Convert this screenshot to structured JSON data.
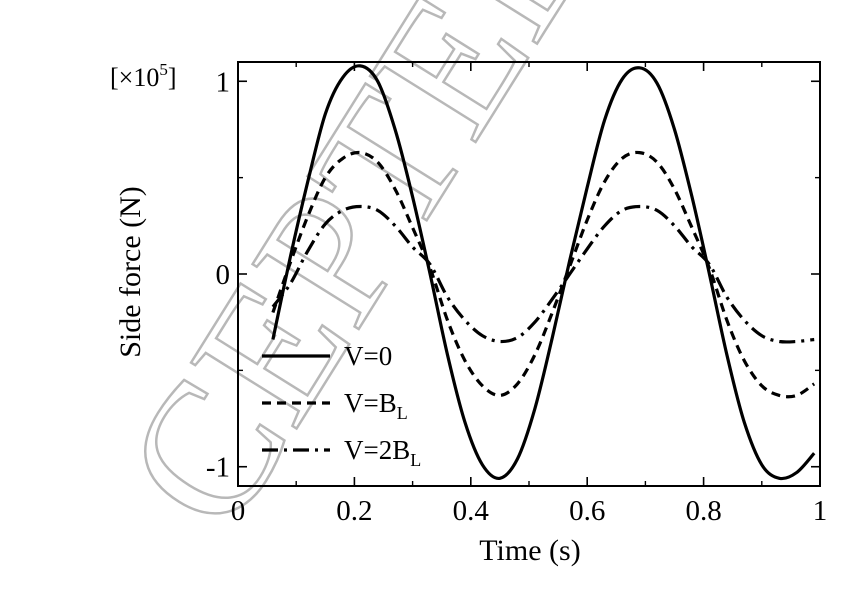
{
  "watermark": {
    "text": "CEPTED",
    "color": "#b5b5b5"
  },
  "scale_label": {
    "prefix": "[×10",
    "exponent": "5",
    "suffix": "]"
  },
  "chart_data": {
    "type": "line",
    "title": "",
    "xlabel": "Time (s)",
    "ylabel": "Side force (N)",
    "xlim": [
      0,
      1
    ],
    "ylim": [
      -1.1,
      1.1
    ],
    "y_multiplier": "×10^5",
    "x_ticks": [
      0,
      0.2,
      0.4,
      0.6,
      0.8,
      1
    ],
    "x_tick_labels": [
      "0",
      "0.2",
      "0.4",
      "0.6",
      "0.8",
      "1"
    ],
    "y_ticks": [
      -1,
      0,
      1
    ],
    "y_tick_labels": [
      "-1",
      "0",
      "1"
    ],
    "grid": false,
    "legend_position": "bottom-left",
    "series": [
      {
        "name": "V=0",
        "name_base": "V=0",
        "name_sub": "",
        "style": "solid",
        "color": "#000000",
        "x": [
          0.06,
          0.09,
          0.12,
          0.15,
          0.18,
          0.21,
          0.24,
          0.27,
          0.3,
          0.33,
          0.36,
          0.39,
          0.42,
          0.45,
          0.48,
          0.51,
          0.54,
          0.57,
          0.6,
          0.63,
          0.66,
          0.69,
          0.72,
          0.75,
          0.78,
          0.81,
          0.84,
          0.87,
          0.9,
          0.93,
          0.96,
          0.99
        ],
        "y": [
          -0.34,
          0.09,
          0.48,
          0.83,
          1.02,
          1.08,
          1.0,
          0.75,
          0.4,
          0.0,
          -0.42,
          -0.77,
          -0.99,
          -1.06,
          -0.96,
          -0.7,
          -0.33,
          0.07,
          0.45,
          0.8,
          1.01,
          1.07,
          0.99,
          0.75,
          0.4,
          0.0,
          -0.42,
          -0.77,
          -0.99,
          -1.06,
          -1.03,
          -0.93
        ]
      },
      {
        "name": "V=BL",
        "name_base": "V=B",
        "name_sub": "L",
        "style": "dashed",
        "color": "#000000",
        "x": [
          0.06,
          0.09,
          0.12,
          0.15,
          0.18,
          0.21,
          0.24,
          0.27,
          0.3,
          0.33,
          0.36,
          0.39,
          0.42,
          0.45,
          0.48,
          0.51,
          0.54,
          0.57,
          0.6,
          0.63,
          0.66,
          0.69,
          0.72,
          0.75,
          0.78,
          0.81,
          0.84,
          0.87,
          0.9,
          0.93,
          0.96,
          0.99
        ],
        "y": [
          -0.2,
          0.06,
          0.3,
          0.5,
          0.6,
          0.63,
          0.58,
          0.44,
          0.24,
          0.03,
          -0.24,
          -0.45,
          -0.58,
          -0.63,
          -0.57,
          -0.42,
          -0.2,
          0.04,
          0.28,
          0.48,
          0.6,
          0.63,
          0.58,
          0.44,
          0.24,
          0.03,
          -0.24,
          -0.45,
          -0.58,
          -0.63,
          -0.63,
          -0.57
        ]
      },
      {
        "name": "V=2BL",
        "name_base": "V=2B",
        "name_sub": "L",
        "style": "dashdot",
        "color": "#000000",
        "x": [
          0.06,
          0.09,
          0.12,
          0.15,
          0.18,
          0.21,
          0.24,
          0.27,
          0.3,
          0.33,
          0.36,
          0.39,
          0.42,
          0.45,
          0.48,
          0.51,
          0.54,
          0.57,
          0.6,
          0.63,
          0.66,
          0.69,
          0.72,
          0.75,
          0.78,
          0.81,
          0.84,
          0.87,
          0.9,
          0.93,
          0.96,
          0.99
        ],
        "y": [
          -0.17,
          -0.05,
          0.12,
          0.26,
          0.33,
          0.35,
          0.33,
          0.25,
          0.14,
          0.05,
          -0.12,
          -0.24,
          -0.32,
          -0.35,
          -0.33,
          -0.25,
          -0.13,
          0.0,
          0.13,
          0.25,
          0.33,
          0.35,
          0.33,
          0.25,
          0.14,
          0.05,
          -0.12,
          -0.24,
          -0.32,
          -0.35,
          -0.35,
          -0.34
        ]
      }
    ]
  }
}
